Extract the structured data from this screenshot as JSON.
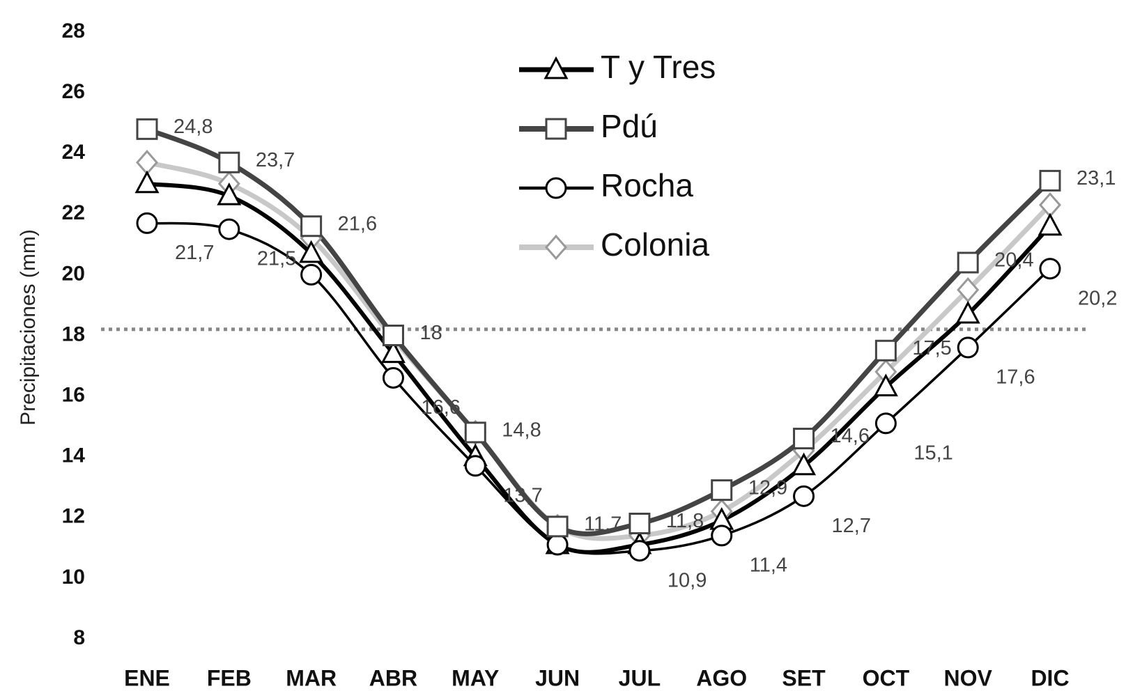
{
  "chart_data": {
    "type": "line",
    "y_label": "Precipitaciones (mm)",
    "categories": [
      "ENE",
      "FEB",
      "MAR",
      "ABR",
      "MAY",
      "JUN",
      "JUL",
      "AGO",
      "SET",
      "OCT",
      "NOV",
      "DIC"
    ],
    "series": [
      {
        "name": "T y Tres",
        "color": "#000000",
        "marker": "triangle",
        "values": [
          23.0,
          22.6,
          20.7,
          17.4,
          14.0,
          11.1,
          11.1,
          11.9,
          13.7,
          16.3,
          18.7,
          21.6
        ]
      },
      {
        "name": "Pdú",
        "color": "#444444",
        "marker": "square",
        "values": [
          24.8,
          23.7,
          21.6,
          18,
          14.8,
          11.7,
          11.8,
          12.9,
          14.6,
          17.5,
          20.4,
          23.1
        ],
        "value_labels": [
          "24,8",
          "23,7",
          "21,6",
          "18",
          "14,8",
          "11,7",
          "11,8",
          "12,9",
          "14,6",
          "17,5",
          "20,4",
          "23,1"
        ]
      },
      {
        "name": "Rocha",
        "color": "#000000",
        "marker": "circle",
        "values": [
          21.7,
          21.5,
          20.0,
          16.6,
          13.7,
          11.1,
          10.9,
          11.4,
          12.7,
          15.1,
          17.6,
          20.2
        ],
        "value_labels": [
          "21,7",
          "21,5",
          null,
          "16,6",
          "13,7",
          null,
          "10,9",
          "11,4",
          "12,7",
          "15,1",
          "17,6",
          "20,2"
        ]
      },
      {
        "name": "Colonia",
        "color": "#c8c8c8",
        "marker": "diamond",
        "values": [
          23.7,
          23.0,
          21.2,
          17.9,
          14.8,
          11.7,
          11.4,
          12.2,
          14.2,
          16.8,
          19.5,
          22.3
        ]
      }
    ],
    "reference_line": 18.2,
    "ylim": [
      8,
      28
    ],
    "yticks": [
      8,
      10,
      12,
      14,
      16,
      18,
      20,
      22,
      24,
      26,
      28
    ],
    "legend": "top"
  }
}
